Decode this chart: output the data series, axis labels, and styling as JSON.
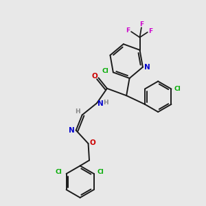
{
  "background_color": "#e8e8e8",
  "bond_color": "#1a1a1a",
  "colors": {
    "N": "#0000cc",
    "O": "#cc0000",
    "Cl": "#00aa00",
    "F": "#cc00cc",
    "H": "#888888",
    "C": "#1a1a1a"
  },
  "figsize": [
    3.0,
    3.0
  ],
  "dpi": 100
}
